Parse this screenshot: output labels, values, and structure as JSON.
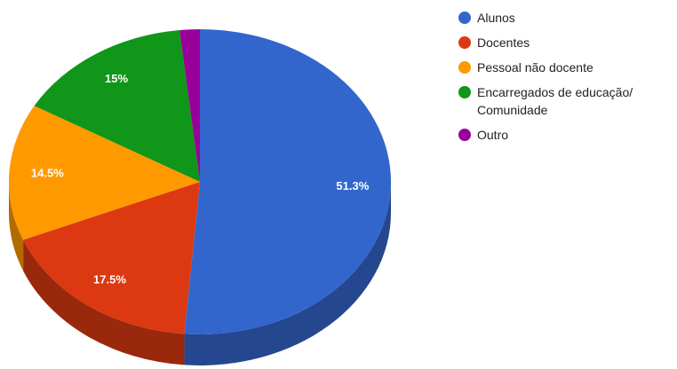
{
  "chart_data": {
    "type": "pie3d",
    "categories": [
      "Alunos",
      "Docentes",
      "Pessoal não docente",
      "Encarregados de educação/ Comunidade",
      "Outro"
    ],
    "values": [
      51.3,
      17.5,
      14.5,
      15,
      1.7
    ],
    "value_labels": [
      "51.3%",
      "17.5%",
      "14.5%",
      "15%",
      null
    ],
    "colors": [
      "#3366cc",
      "#dc3912",
      "#ff9900",
      "#109618",
      "#990099"
    ],
    "legend": "right"
  }
}
